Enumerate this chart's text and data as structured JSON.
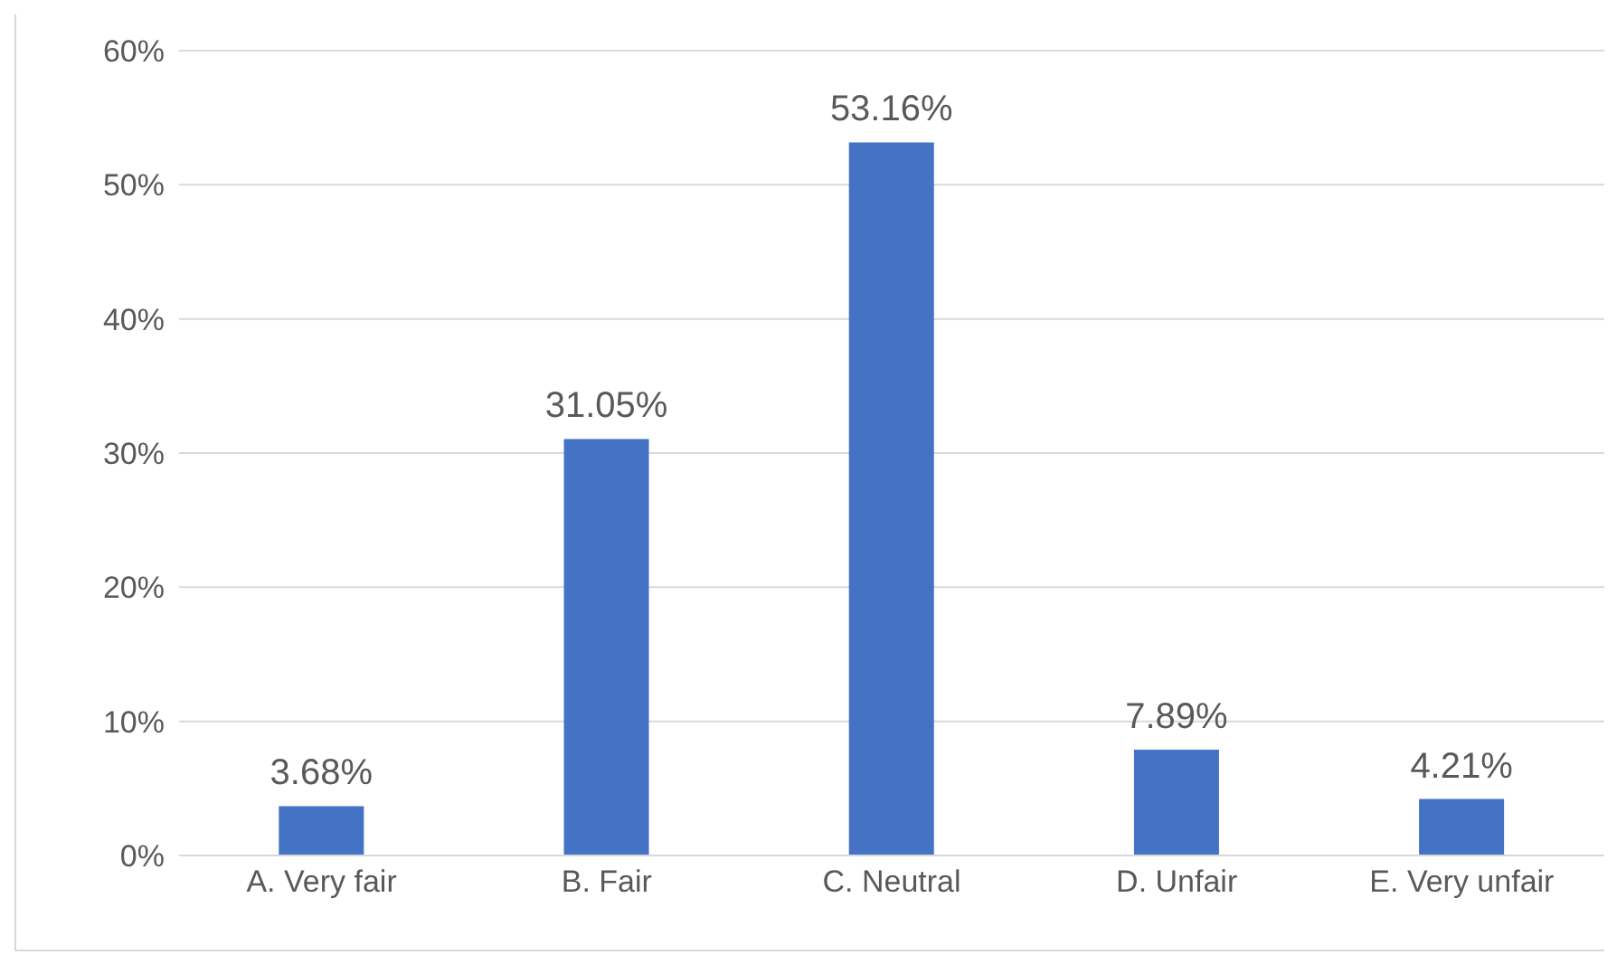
{
  "chart_data": {
    "type": "bar",
    "categories": [
      "A. Very fair",
      "B. Fair",
      "C. Neutral",
      "D. Unfair",
      "E. Very unfair"
    ],
    "values": [
      3.68,
      31.05,
      53.16,
      7.89,
      4.21
    ],
    "value_labels": [
      "3.68%",
      "31.05%",
      "53.16%",
      "7.89%",
      "4.21%"
    ],
    "color": "#4472c4",
    "ylim": [
      0,
      60
    ],
    "yticks": [
      {
        "value": 0,
        "label": "0%"
      },
      {
        "value": 10,
        "label": "10%"
      },
      {
        "value": 20,
        "label": "20%"
      },
      {
        "value": 30,
        "label": "30%"
      },
      {
        "value": 40,
        "label": "40%"
      },
      {
        "value": 50,
        "label": "50%"
      },
      {
        "value": 60,
        "label": "60%"
      }
    ],
    "grid": "y",
    "legend": false
  }
}
